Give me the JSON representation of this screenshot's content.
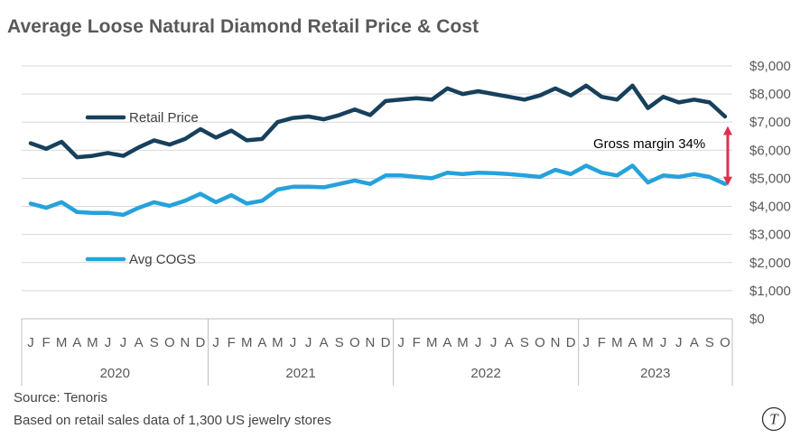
{
  "chart_data": {
    "type": "line",
    "title": "Average Loose Natural Diamond Retail Price & Cost",
    "ylim": [
      0,
      9000
    ],
    "y_ticks": [
      "$0",
      "$1,000",
      "$2,000",
      "$3,000",
      "$4,000",
      "$5,000",
      "$6,000",
      "$7,000",
      "$8,000",
      "$9,000"
    ],
    "y_tick_values": [
      0,
      1000,
      2000,
      3000,
      4000,
      5000,
      6000,
      7000,
      8000,
      9000
    ],
    "grid": true,
    "month_labels": [
      "J",
      "F",
      "M",
      "A",
      "M",
      "J",
      "J",
      "A",
      "S",
      "O",
      "N",
      "D",
      "J",
      "F",
      "M",
      "A",
      "M",
      "J",
      "J",
      "A",
      "S",
      "O",
      "N",
      "D",
      "J",
      "F",
      "M",
      "A",
      "M",
      "J",
      "J",
      "A",
      "S",
      "O",
      "N",
      "D",
      "J",
      "F",
      "M",
      "A",
      "M",
      "J",
      "J",
      "A",
      "S",
      "O"
    ],
    "years": [
      "2020",
      "2021",
      "2022",
      "2023"
    ],
    "series": [
      {
        "name": "Retail Price",
        "color": "#17405c",
        "values": [
          6250,
          6050,
          6300,
          5750,
          5800,
          5900,
          5800,
          6100,
          6350,
          6200,
          6400,
          6750,
          6450,
          6700,
          6350,
          6400,
          7000,
          7150,
          7200,
          7100,
          7250,
          7450,
          7250,
          7750,
          7800,
          7850,
          7800,
          8200,
          8000,
          8100,
          8000,
          7900,
          7800,
          7950,
          8200,
          7950,
          8300,
          7900,
          7800,
          8300,
          7500,
          7900,
          7700,
          7800,
          7700,
          7200
        ]
      },
      {
        "name": "Avg COGS",
        "color": "#25a2dc",
        "values": [
          4100,
          3950,
          4150,
          3800,
          3770,
          3770,
          3700,
          3950,
          4150,
          4020,
          4200,
          4450,
          4150,
          4400,
          4100,
          4200,
          4600,
          4700,
          4700,
          4680,
          4800,
          4920,
          4800,
          5100,
          5100,
          5050,
          5000,
          5200,
          5150,
          5200,
          5180,
          5150,
          5100,
          5050,
          5300,
          5150,
          5450,
          5200,
          5100,
          5450,
          4850,
          5100,
          5050,
          5150,
          5050,
          4800
        ]
      }
    ],
    "annotation": {
      "text": "Gross margin 34%",
      "from": 4800,
      "to": 6800,
      "color": "#e0304f"
    }
  },
  "footer": {
    "source": "Source: Tenoris",
    "note": "Based on retail sales data of 1,300 US jewelry stores"
  },
  "logo": {
    "letter": "T"
  }
}
